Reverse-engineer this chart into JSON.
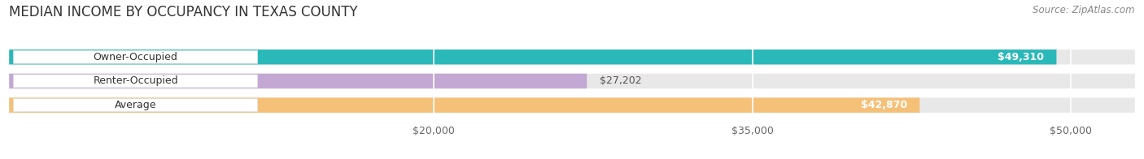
{
  "title": "MEDIAN INCOME BY OCCUPANCY IN TEXAS COUNTY",
  "source": "Source: ZipAtlas.com",
  "categories": [
    "Owner-Occupied",
    "Renter-Occupied",
    "Average"
  ],
  "values": [
    49310,
    27202,
    42870
  ],
  "bar_colors": [
    "#2ab8b8",
    "#c4a8d4",
    "#f5c078"
  ],
  "value_labels": [
    "$49,310",
    "$27,202",
    "$42,870"
  ],
  "xlim": [
    0,
    53000
  ],
  "xticks": [
    20000,
    35000,
    50000
  ],
  "xtick_labels": [
    "$20,000",
    "$35,000",
    "$50,000"
  ],
  "title_fontsize": 12,
  "label_fontsize": 9,
  "value_fontsize": 9,
  "source_fontsize": 8.5,
  "bar_height": 0.62,
  "background_color": "#ffffff",
  "bar_bg_color": "#e8e8e8",
  "label_box_color": "#ffffff",
  "value_label_color_inside": "#ffffff",
  "value_label_color_outside": "#555555"
}
